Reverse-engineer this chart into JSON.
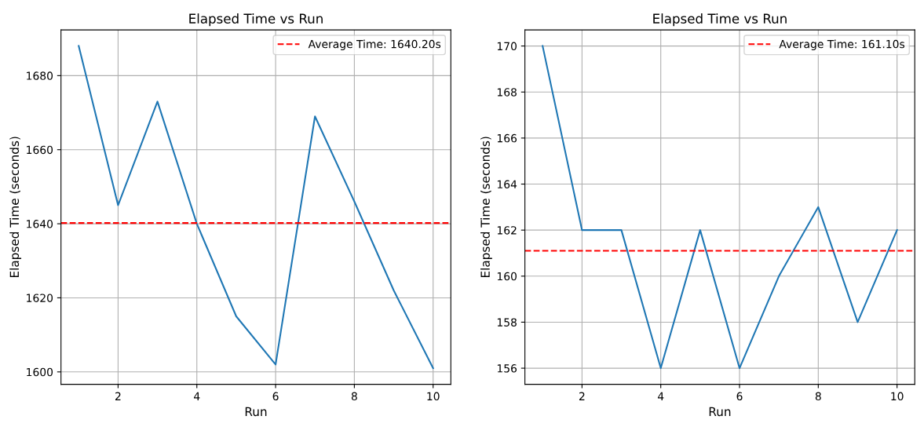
{
  "chart_data": [
    {
      "type": "line",
      "title": "Elapsed Time vs Run",
      "xlabel": "Run",
      "ylabel": "Elapsed Time (seconds)",
      "x": [
        1,
        2,
        3,
        4,
        5,
        6,
        7,
        8,
        9,
        10
      ],
      "series": [
        {
          "color": "#1f77b4",
          "values": [
            1688,
            1645,
            1673,
            1640,
            1615,
            1602,
            1669,
            1646,
            1622,
            1601
          ]
        }
      ],
      "ref_lines": [
        {
          "axis": "y",
          "value": 1640.2,
          "label": "Average Time: 1640.20s",
          "color": "#ff0000",
          "line_style": "dashed"
        }
      ],
      "xlim": [
        0.55,
        10.45
      ],
      "xticks": [
        2,
        4,
        6,
        8,
        10
      ],
      "ylim": [
        1596.65,
        1692.35
      ],
      "yticks": [
        1600,
        1620,
        1640,
        1660,
        1680
      ],
      "grid": true,
      "legend": "top right"
    },
    {
      "type": "line",
      "title": "Elapsed Time vs Run",
      "xlabel": "Run",
      "ylabel": "Elapsed Time (seconds)",
      "x": [
        1,
        2,
        3,
        4,
        5,
        6,
        7,
        8,
        9,
        10
      ],
      "series": [
        {
          "color": "#1f77b4",
          "values": [
            170,
            162,
            162,
            156,
            162,
            156,
            160,
            163,
            158,
            162
          ]
        }
      ],
      "ref_lines": [
        {
          "axis": "y",
          "value": 161.1,
          "label": "Average Time: 161.10s",
          "color": "#ff0000",
          "line_style": "dashed"
        }
      ],
      "xlim": [
        0.55,
        10.45
      ],
      "xticks": [
        2,
        4,
        6,
        8,
        10
      ],
      "ylim": [
        155.3,
        170.7
      ],
      "yticks": [
        156,
        158,
        160,
        162,
        164,
        166,
        168,
        170
      ],
      "grid": true,
      "legend": "top right"
    }
  ]
}
